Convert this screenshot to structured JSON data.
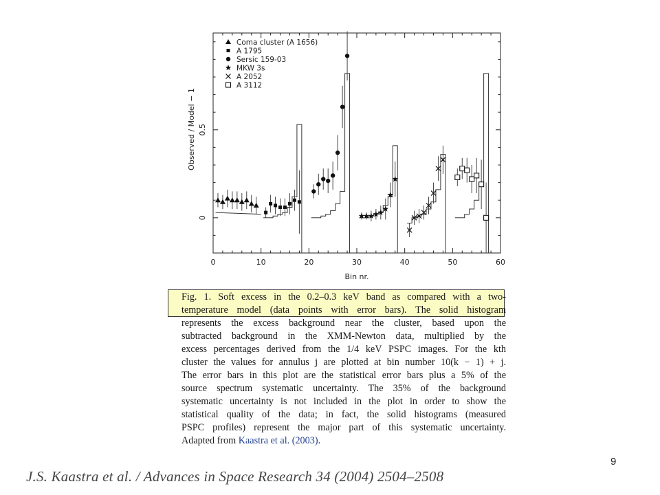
{
  "chart_data": {
    "type": "scatter",
    "xlabel": "Bin nr.",
    "ylabel": "Observed / Model − 1",
    "xlim": [
      0,
      60
    ],
    "ylim": [
      -0.2,
      1.05
    ],
    "xticks": [
      0,
      10,
      20,
      30,
      40,
      50,
      60
    ],
    "yticks": [
      0,
      0.5
    ],
    "ytick_labels": [
      "0",
      "0.5"
    ],
    "xtick_labels": [
      "0",
      "10",
      "20",
      "30",
      "40",
      "50",
      "60"
    ],
    "legend_position": "top-left",
    "series": [
      {
        "name": "Coma cluster (A 1656)",
        "marker": "triangle",
        "x": [
          1,
          2,
          3,
          4,
          5,
          6,
          7,
          8,
          9
        ],
        "y": [
          0.1,
          0.09,
          0.11,
          0.1,
          0.1,
          0.09,
          0.1,
          0.08,
          0.07
        ],
        "err": [
          0.04,
          0.04,
          0.05,
          0.05,
          0.05,
          0.05,
          0.05,
          0.05,
          0.05
        ],
        "model_x": [
          1,
          10
        ],
        "model_y": [
          0.02,
          0.02,
          0.03,
          0.04,
          0.05,
          0.06,
          0.06,
          0.07,
          0.08,
          0.1
        ]
      },
      {
        "name": "A 1795",
        "marker": "square",
        "x": [
          11,
          12,
          13,
          14,
          15,
          16,
          17,
          18
        ],
        "y": [
          0.03,
          0.08,
          0.07,
          0.06,
          0.06,
          0.08,
          0.1,
          0.09
        ],
        "err": [
          0.03,
          0.05,
          0.05,
          0.05,
          0.05,
          0.06,
          0.06,
          0.18
        ],
        "model_steps": [
          0.0,
          0.0,
          0.01,
          0.02,
          0.03,
          0.06,
          0.12,
          0.53
        ]
      },
      {
        "name": "Sersic 159-03",
        "marker": "circle",
        "x": [
          21,
          22,
          23,
          24,
          25,
          26,
          27,
          28
        ],
        "y": [
          0.15,
          0.19,
          0.22,
          0.21,
          0.24,
          0.37,
          0.63,
          0.92
        ],
        "err": [
          0.04,
          0.06,
          0.06,
          0.07,
          0.08,
          0.1,
          0.12,
          0.14
        ],
        "model_steps": [
          0.0,
          0.0,
          0.01,
          0.02,
          0.04,
          0.08,
          0.15,
          0.82
        ]
      },
      {
        "name": "MKW 3s",
        "marker": "star",
        "x": [
          31,
          32,
          33,
          34,
          35,
          36,
          37,
          38
        ],
        "y": [
          0.01,
          0.01,
          0.01,
          0.02,
          0.03,
          0.05,
          0.13,
          0.22
        ],
        "err": [
          0.02,
          0.02,
          0.03,
          0.03,
          0.04,
          0.06,
          0.07,
          0.1
        ],
        "model_steps": [
          0.0,
          0.0,
          0.01,
          0.02,
          0.03,
          0.07,
          0.12,
          0.41
        ]
      },
      {
        "name": "A 2052",
        "marker": "cross",
        "x": [
          41,
          42,
          43,
          44,
          45,
          46,
          47,
          48
        ],
        "y": [
          -0.07,
          0.0,
          0.01,
          0.03,
          0.07,
          0.14,
          0.28,
          0.33
        ],
        "err": [
          0.04,
          0.04,
          0.04,
          0.04,
          0.05,
          0.06,
          0.07,
          0.08
        ],
        "model_steps": [
          -0.03,
          0.0,
          0.01,
          0.02,
          0.05,
          0.09,
          0.16,
          0.36
        ]
      },
      {
        "name": "A 3112",
        "marker": "open-square",
        "x": [
          51,
          52,
          53,
          54,
          55,
          56,
          57
        ],
        "y": [
          0.23,
          0.28,
          0.27,
          0.22,
          0.24,
          0.19,
          0.0
        ],
        "err": [
          0.05,
          0.06,
          0.07,
          0.08,
          0.1,
          0.14,
          0.2
        ],
        "model_steps": [
          0.0,
          0.0,
          0.02,
          0.05,
          0.1,
          0.2,
          0.82
        ]
      }
    ]
  },
  "caption": {
    "lines": [
      "Fig. 1.  Soft excess in the 0.2–0.3 keV band as compared with a two-",
      "temperature model (data points with error bars). The solid histogram",
      "represents the excess background near the cluster, based upon the",
      "subtracted background in the XMM-Newton data, multiplied by the",
      "excess percentages derived from the 1/4 keV PSPC images. For the kth",
      "cluster the values for annulus j are plotted at bin number 10(k − 1) + j.",
      "The error bars in this plot are the statistical error bars plus a 5% of the",
      "source spectrum systematic uncertainty. The 35% of the background",
      "systematic uncertainty is not included in the plot in order to show the",
      "statistical quality of the data; in fact, the solid histograms (measured",
      "PSPC profiles) represent the major part of this systematic uncertainty."
    ],
    "last_line_prefix": "Adapted from ",
    "reference": "Kaastra et al. (2003)",
    "last_line_suffix": "."
  },
  "page_number": "9",
  "footer_citation": "J.S. Kaastra et al. / Advances in Space Research 34 (2004) 2504–2508",
  "colors": {
    "highlight": "#fbfbc4",
    "reference_link": "#1f3f8f",
    "ink": "#1a1a1a"
  }
}
